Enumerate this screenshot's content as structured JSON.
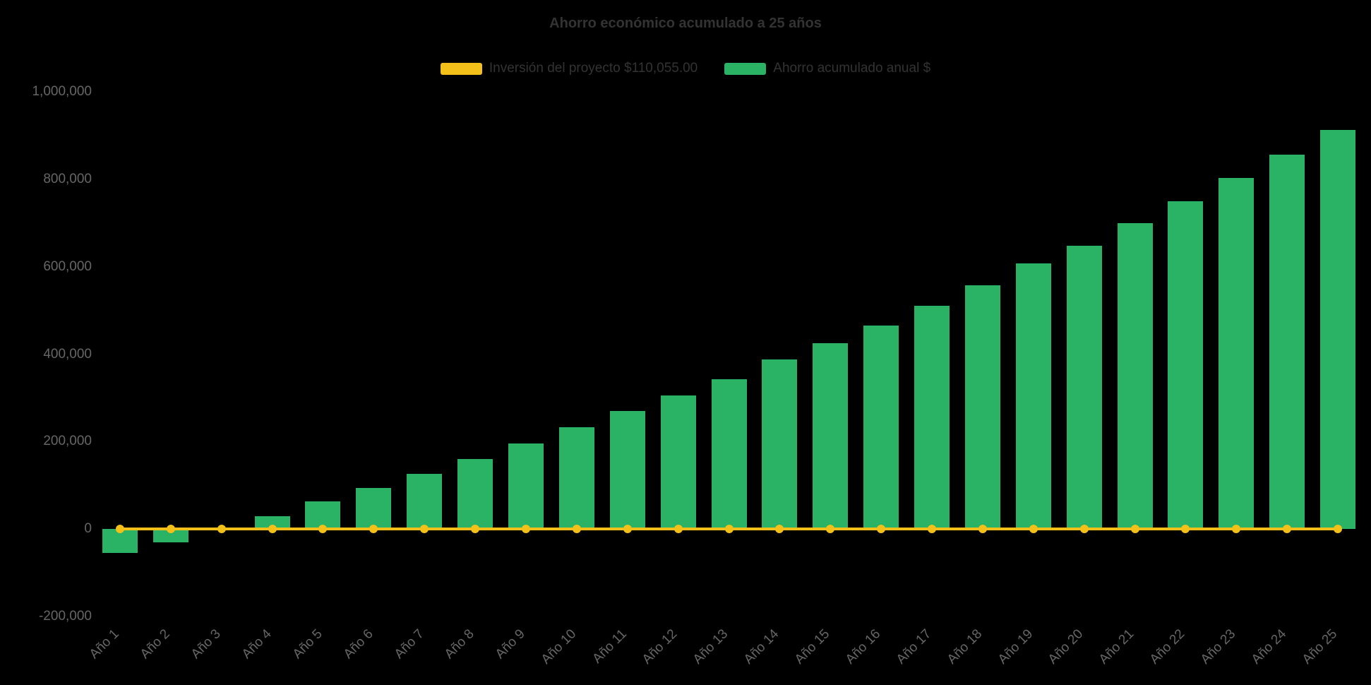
{
  "style": {
    "background_color": "#000000",
    "bar_color": "#2AB364",
    "line_color": "#F2C019",
    "title_color": "#333333",
    "legend_text_color": "#333333",
    "axis_label_color": "#666666"
  },
  "chart_data": {
    "type": "bar",
    "title": "Ahorro económico acumulado a 25 años",
    "categories": [
      "Año 1",
      "Año 2",
      "Año 3",
      "Año 4",
      "Año 5",
      "Año 6",
      "Año 7",
      "Año 8",
      "Año 9",
      "Año 10",
      "Año 11",
      "Año 12",
      "Año 13",
      "Año 14",
      "Año 15",
      "Año 16",
      "Año 17",
      "Año 18",
      "Año 19",
      "Año 20",
      "Año 21",
      "Año 22",
      "Año 23",
      "Año 24",
      "Año 25"
    ],
    "series": [
      {
        "name": "Inversión del proyecto $110,055.00",
        "type": "line",
        "color": "#F2C019",
        "constant_value": 0
      },
      {
        "name": "Ahorro acumulado anual $",
        "type": "column",
        "color": "#2AB364",
        "values": [
          -54000,
          -30000,
          4000,
          30000,
          63000,
          94000,
          126000,
          160000,
          196000,
          233000,
          270000,
          306000,
          343000,
          388000,
          425000,
          466000,
          510000,
          557000,
          607000,
          648000,
          700000,
          749000,
          803000,
          857000,
          913000
        ]
      }
    ],
    "y_axis": {
      "ticks": [
        {
          "value": -200000,
          "label": "-200,000"
        },
        {
          "value": 0,
          "label": "0"
        },
        {
          "value": 200000,
          "label": "200,000"
        },
        {
          "value": 400000,
          "label": "400,000"
        },
        {
          "value": 600000,
          "label": "600,000"
        },
        {
          "value": 800000,
          "label": "800,000"
        },
        {
          "value": 1000000,
          "label": "1,000,000"
        }
      ],
      "ylim": [
        -200000,
        1000000
      ]
    },
    "legend_position": "top",
    "grid": false
  }
}
